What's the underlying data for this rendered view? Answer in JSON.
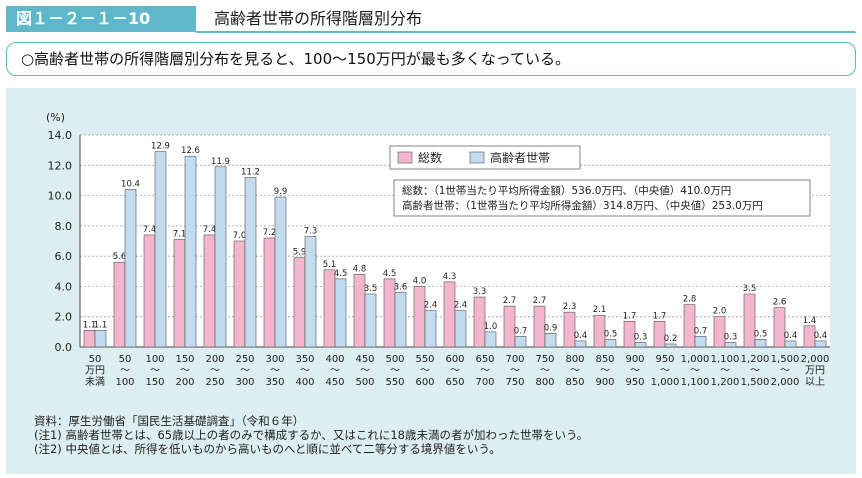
{
  "header": {
    "figure_label": "図１－２－１－10",
    "title": "高齢者世帯の所得階層別分布"
  },
  "summary": "○高齢者世帯の所得階層別分布を見ると、100～150万円が最も多くなっている。",
  "chart_data": {
    "type": "bar",
    "ylabel": "(%)",
    "ylim": [
      0,
      14
    ],
    "yticks": [
      "0.0",
      "2.0",
      "4.0",
      "6.0",
      "8.0",
      "10.0",
      "12.0",
      "14.0"
    ],
    "grid": true,
    "legend_position": "top-right",
    "categories": [
      [
        "50",
        "万円",
        "未満"
      ],
      [
        "50",
        "～",
        "100"
      ],
      [
        "100",
        "～",
        "150"
      ],
      [
        "150",
        "～",
        "200"
      ],
      [
        "200",
        "～",
        "250"
      ],
      [
        "250",
        "～",
        "300"
      ],
      [
        "300",
        "～",
        "350"
      ],
      [
        "350",
        "～",
        "400"
      ],
      [
        "400",
        "～",
        "450"
      ],
      [
        "450",
        "～",
        "500"
      ],
      [
        "500",
        "～",
        "550"
      ],
      [
        "550",
        "～",
        "600"
      ],
      [
        "600",
        "～",
        "650"
      ],
      [
        "650",
        "～",
        "700"
      ],
      [
        "700",
        "～",
        "750"
      ],
      [
        "750",
        "～",
        "800"
      ],
      [
        "800",
        "～",
        "850"
      ],
      [
        "850",
        "～",
        "900"
      ],
      [
        "900",
        "～",
        "950"
      ],
      [
        "950",
        "～",
        "1,000"
      ],
      [
        "1,000",
        "～",
        "1,100"
      ],
      [
        "1,100",
        "～",
        "1,200"
      ],
      [
        "1,200",
        "～",
        "1,500"
      ],
      [
        "1,500",
        "～",
        "2,000"
      ],
      [
        "2,000",
        "万円",
        "以上"
      ]
    ],
    "series": [
      {
        "name": "総数",
        "color": "#f4b6cd",
        "values": [
          1.1,
          5.6,
          7.4,
          7.1,
          7.4,
          7.0,
          7.2,
          5.9,
          5.1,
          4.8,
          4.5,
          4.0,
          4.3,
          3.3,
          2.7,
          2.7,
          2.3,
          2.1,
          1.7,
          1.7,
          2.8,
          2.0,
          3.5,
          2.6,
          1.4
        ],
        "labels": [
          "1.1",
          "5.6",
          "7.4",
          "7.1",
          "7.4",
          "7.0",
          "7.2",
          "5.9",
          "5.1",
          "4.8",
          "4.5",
          "4.0",
          "4.3",
          "3.3",
          "2.7",
          "2.7",
          "2.3",
          "2.1",
          "1.7",
          "1.7",
          "2.8",
          "2.0",
          "3.5",
          "2.6",
          "1.4"
        ]
      },
      {
        "name": "高齢者世帯",
        "color": "#c2dbee",
        "values": [
          1.1,
          10.4,
          12.9,
          12.6,
          11.9,
          11.2,
          9.9,
          7.3,
          4.5,
          3.5,
          3.6,
          2.4,
          2.4,
          1.0,
          0.7,
          0.9,
          0.4,
          0.5,
          0.3,
          0.2,
          0.7,
          0.3,
          0.5,
          0.4,
          0.4
        ],
        "labels": [
          "1.1",
          "10.4",
          "12.9",
          "12.6",
          "11.9",
          "11.2",
          "9.9",
          "7.3",
          "4.5",
          "3.5",
          "3.6",
          "2.4",
          "2.4",
          "1.0",
          "0.7",
          "0.9",
          "0.4",
          "0.5",
          "0.3",
          "0.2",
          "0.7",
          "0.3",
          "0.5",
          "0.4",
          "0.4"
        ]
      }
    ],
    "annotations": [
      "総数：（1世帯当たり平均所得金額）536.0万円、（中央値）410.0万円",
      "高齢者世帯：（1世帯当たり平均所得金額）314.8万円、（中央値）253.0万円"
    ]
  },
  "notes": [
    "資料：厚生労働省「国民生活基礎調査」（令和６年）",
    "(注1) 高齢者世帯とは、65歳以上の者のみで構成するか、又はこれに18歳未満の者が加わった世帯をいう。",
    "(注2) 中央値とは、所得を低いものから高いものへと順に並べて二等分する境界値をいう。"
  ]
}
